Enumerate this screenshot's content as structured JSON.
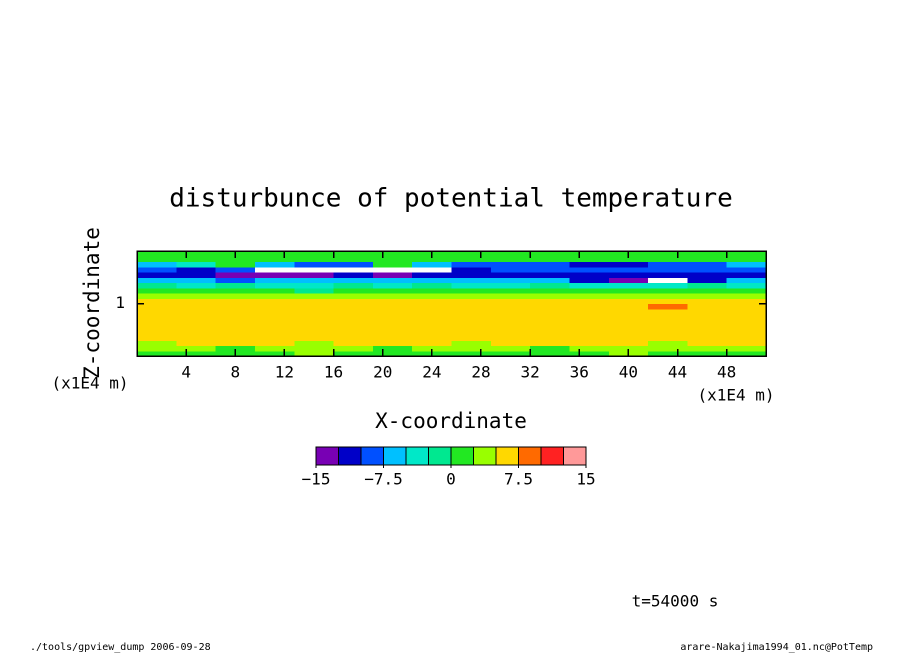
{
  "chart_data": {
    "type": "contour",
    "title": "disturbunce of potential temperature",
    "x_label": "X-coordinate",
    "y_label": "Z-coordinate",
    "x_unit": "(x1E4 m)",
    "y_unit": "(x1E4 m)",
    "xlim": [
      0,
      51.2
    ],
    "ylim": [
      0,
      2
    ],
    "xticks": [
      4,
      8,
      12,
      16,
      20,
      24,
      28,
      32,
      36,
      40,
      44,
      48
    ],
    "yticks": [
      1
    ],
    "x": [
      1.6,
      4.8,
      8,
      11.2,
      14.4,
      17.6,
      20.8,
      24,
      27.2,
      30.4,
      33.6,
      36.8,
      40,
      43.2,
      46.4,
      49.6
    ],
    "z": [
      0.05,
      0.15,
      0.25,
      0.35,
      0.45,
      0.55,
      0.65,
      0.75,
      0.85,
      0.95,
      1.05,
      1.15,
      1.25,
      1.35,
      1.45,
      1.55,
      1.65,
      1.75,
      1.85,
      1.95
    ],
    "values": [
      [
        1.5,
        1.5,
        1.5,
        1.5,
        3.5,
        1.5,
        1.5,
        1.5,
        1.5,
        1.5,
        1.5,
        1.5,
        3.5,
        1.5,
        1.5,
        1.5
      ],
      [
        3.5,
        3.5,
        1.5,
        3.5,
        3.5,
        3.5,
        1.5,
        3.5,
        3.5,
        3.5,
        1.5,
        3.5,
        3.5,
        3.5,
        3.5,
        3.5
      ],
      [
        3.5,
        6,
        6,
        6,
        3.5,
        6,
        6,
        6,
        3.5,
        6,
        6,
        6,
        6,
        3.5,
        6,
        6
      ],
      [
        6,
        6,
        6,
        6,
        6,
        6,
        6,
        6,
        6,
        6,
        6,
        6,
        6,
        6,
        6,
        6
      ],
      [
        6,
        6,
        6,
        6,
        6,
        6,
        6,
        6,
        6,
        6,
        6,
        6,
        6,
        6,
        6,
        6
      ],
      [
        6,
        6,
        6,
        6,
        6,
        6,
        6,
        6,
        6,
        6,
        6,
        6,
        6,
        6,
        6,
        6
      ],
      [
        6,
        6,
        6,
        6,
        6,
        6,
        6,
        6,
        6,
        6,
        6,
        6,
        6,
        6,
        6,
        6
      ],
      [
        6,
        6,
        6,
        6,
        6,
        6,
        6,
        6,
        6,
        6,
        6,
        6,
        6,
        6,
        6,
        6
      ],
      [
        6,
        6,
        6,
        6,
        6,
        6,
        6,
        6,
        6,
        6,
        6,
        6,
        6,
        6,
        6,
        6
      ],
      [
        6,
        6,
        6,
        6,
        6,
        6,
        6,
        6,
        6,
        6,
        6,
        6,
        6,
        8.5,
        6,
        6
      ],
      [
        6,
        6,
        6,
        6,
        6,
        6,
        6,
        6,
        6,
        6,
        6,
        6,
        6,
        6,
        6,
        6
      ],
      [
        3.5,
        3.5,
        3.5,
        3.5,
        3.5,
        3.5,
        3.5,
        3.5,
        3.5,
        3.5,
        3.5,
        3.5,
        3.5,
        3.5,
        3.5,
        3.5
      ],
      [
        1,
        1,
        1,
        1,
        -1,
        1,
        1,
        1,
        1,
        1,
        1,
        1,
        1,
        1,
        1,
        1
      ],
      [
        -1,
        -3.5,
        -1,
        -3.5,
        -3.5,
        -1,
        -3.5,
        -1,
        -3.5,
        -3.5,
        -1,
        -3.5,
        -3.5,
        -3.5,
        -1,
        -3.5
      ],
      [
        -6,
        -6,
        -9,
        -6,
        -6,
        -6,
        -6,
        -6,
        -6,
        -6,
        -6,
        -11,
        -14,
        -17,
        -11,
        -6
      ],
      [
        -11,
        -11,
        -14,
        -14,
        -14,
        -11,
        -14,
        -11,
        -11,
        -11,
        -11,
        -11,
        -11,
        -11,
        -11,
        -11
      ],
      [
        -9,
        -11,
        -9,
        -17,
        -17,
        -17,
        -17,
        -17,
        -11,
        -9,
        -9,
        -9,
        -9,
        -9,
        -9,
        -9
      ],
      [
        -6,
        -3.5,
        1,
        -6,
        -9,
        -9,
        1,
        -6,
        -9,
        -9,
        -9,
        -11,
        -11,
        -9,
        -9,
        -6
      ],
      [
        1,
        1,
        1,
        1,
        1,
        1,
        1,
        1,
        1,
        1,
        1,
        1,
        1,
        1,
        1,
        1
      ],
      [
        1,
        1,
        1,
        1,
        1,
        1,
        1,
        1,
        1,
        1,
        1,
        1,
        1,
        1,
        1,
        1
      ]
    ],
    "levels": [
      -15,
      -12.5,
      -10,
      -7.5,
      -5,
      -2.5,
      0,
      2.5,
      5,
      7.5,
      10,
      12.5,
      15
    ],
    "colors": [
      "#7800b4",
      "#0000c8",
      "#0050ff",
      "#00c0ff",
      "#00e8c8",
      "#00e890",
      "#22e822",
      "#99ff00",
      "#ffd800",
      "#ff6a00",
      "#ff2222",
      "#ff9999"
    ],
    "colorbar_ticks": [
      {
        "value": -15,
        "label": "−15"
      },
      {
        "value": -7.5,
        "label": "−7.5"
      },
      0,
      7.5,
      15
    ],
    "time_label": "t=54000 s",
    "footer_left": "./tools/gpview_dump  2006-09-28",
    "footer_right": "arare-Nakajima1994_01.nc@PotTemp"
  }
}
